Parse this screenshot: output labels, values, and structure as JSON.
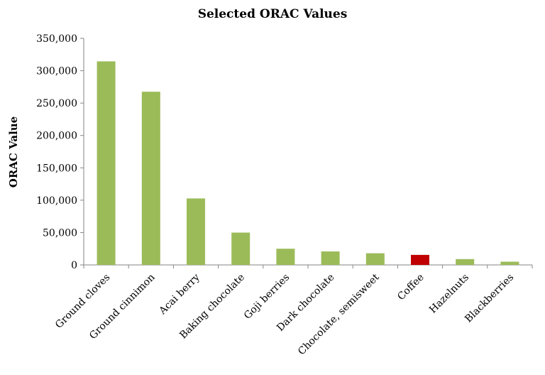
{
  "chart_data": {
    "type": "bar",
    "title": "Selected ORAC Values",
    "xlabel": "",
    "ylabel": "ORAC Value",
    "ylim": [
      0,
      350000
    ],
    "yticks": [
      0,
      50000,
      100000,
      150000,
      200000,
      250000,
      300000,
      350000
    ],
    "ytick_labels": [
      "0",
      "50,000",
      "100,000",
      "150,000",
      "200,000",
      "250,000",
      "300,000",
      "350,000"
    ],
    "grid": false,
    "legend": "none",
    "categories": [
      "Ground cloves",
      "Ground cinnimon",
      "Acai berry",
      "Baking chocolate",
      "Goji berries",
      "Dark chocolate",
      "Chocolate, semisweet",
      "Coffee",
      "Hazelnuts",
      "Blackberries"
    ],
    "values": [
      314446,
      267536,
      102700,
      49926,
      25000,
      20800,
      18000,
      15500,
      9000,
      5000
    ],
    "colors": {
      "default": "#9bbb59",
      "highlight": "#c00000"
    },
    "highlight_category": "Coffee"
  }
}
